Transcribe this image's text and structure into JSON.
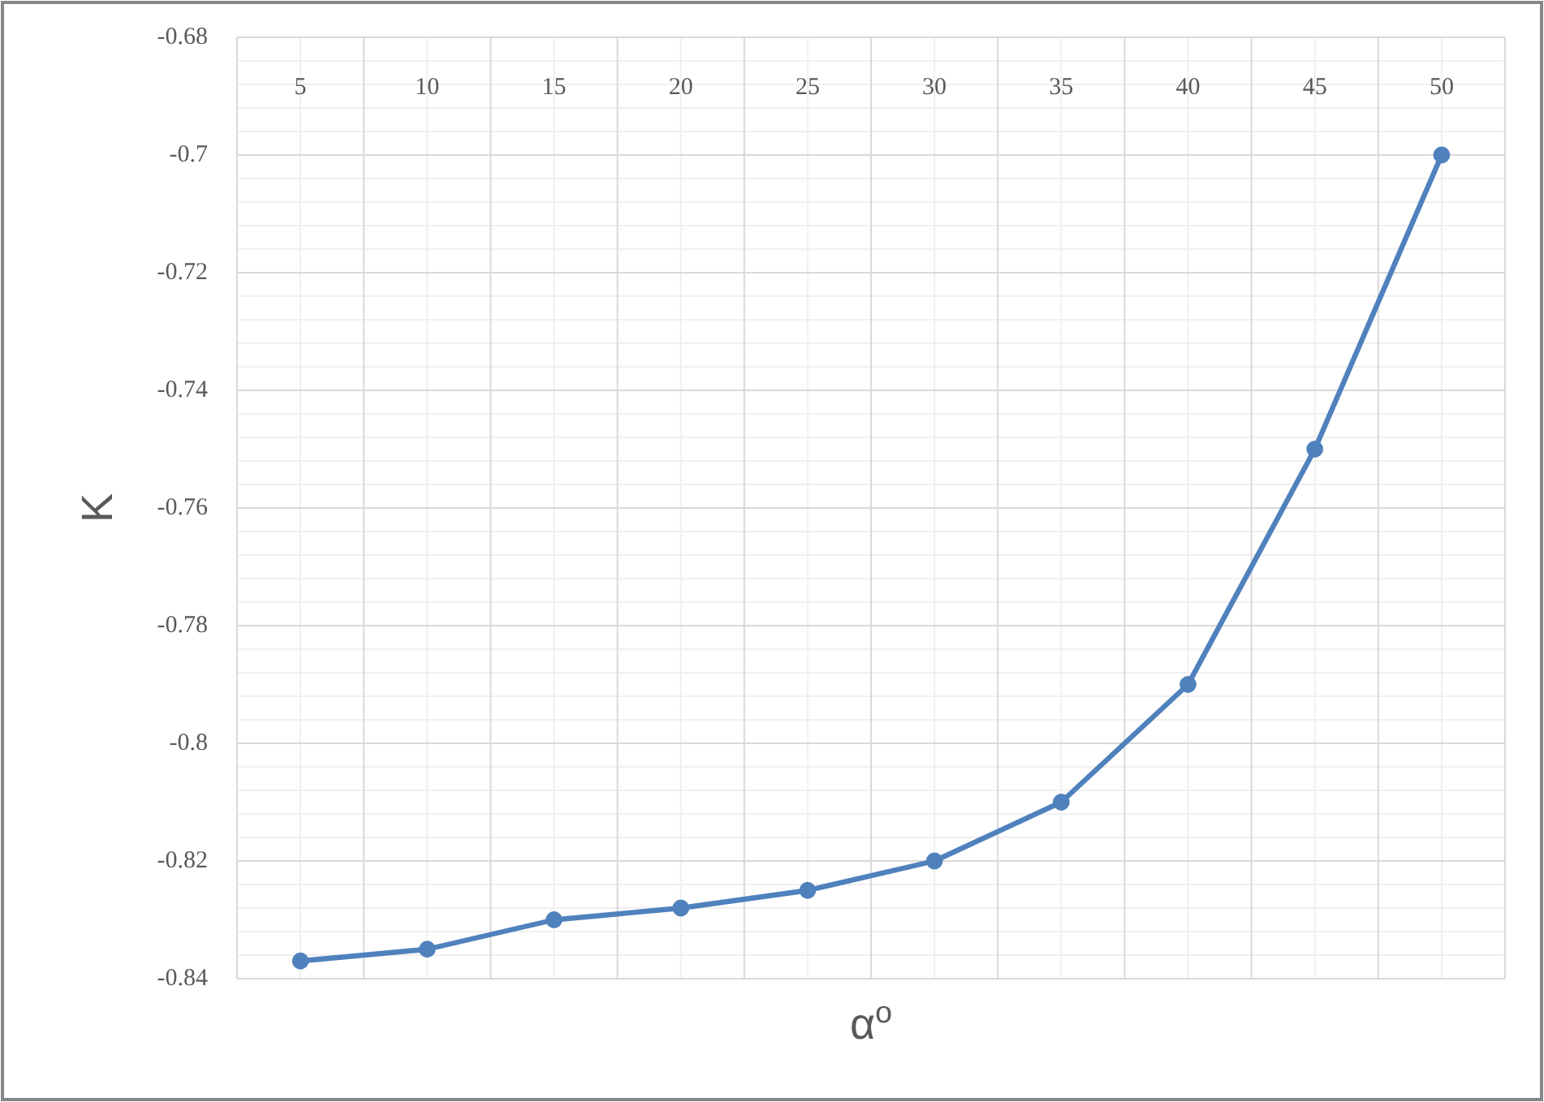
{
  "chart_data": {
    "type": "line",
    "xlabel": "α$^{o}$",
    "ylabel": "K",
    "categories": [
      "5",
      "10",
      "15",
      "20",
      "25",
      "30",
      "35",
      "40",
      "45",
      "50"
    ],
    "series": [
      {
        "color": "#4f81bd",
        "values": [
          -0.837,
          -0.835,
          -0.83,
          -0.828,
          -0.825,
          -0.82,
          -0.81,
          -0.79,
          -0.75,
          -0.7
        ]
      }
    ],
    "ylim": [
      -0.84,
      -0.68
    ],
    "yticks": [
      -0.84,
      -0.82,
      -0.8,
      -0.78,
      -0.76,
      -0.74,
      -0.72,
      -0.7,
      -0.68
    ],
    "grid": true,
    "marker": "circle",
    "line_style": "solid"
  }
}
